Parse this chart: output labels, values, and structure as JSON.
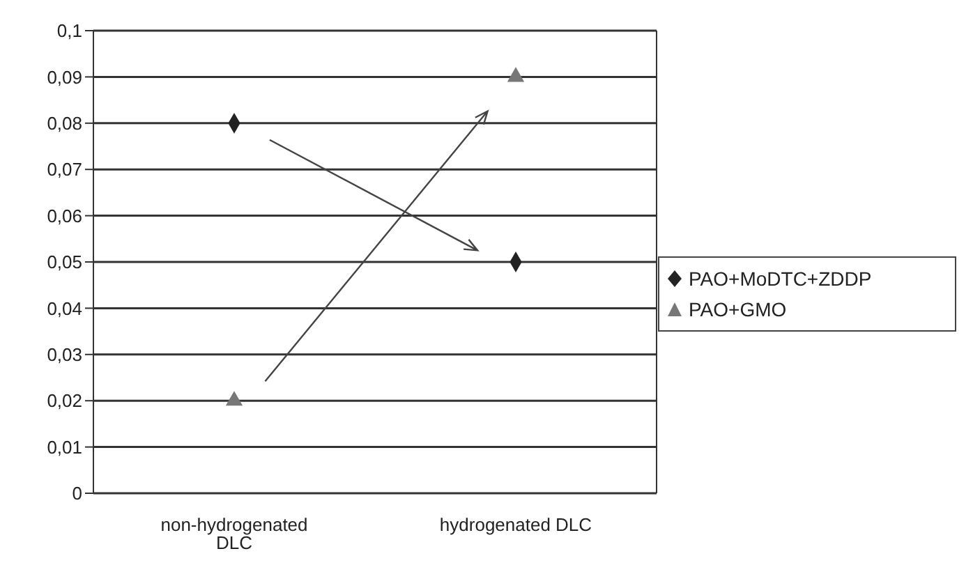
{
  "chart_data": {
    "type": "scatter",
    "categories": [
      "non-hydrogenated DLC",
      "hydrogenated DLC"
    ],
    "series": [
      {
        "name": "PAO+MoDTC+ZDDP",
        "color": "#222222",
        "marker": "diamond",
        "values": [
          0.08,
          0.05
        ]
      },
      {
        "name": "PAO+GMO",
        "color": "#777777",
        "marker": "triangle",
        "values": [
          0.02,
          0.09
        ]
      }
    ],
    "ylim": [
      0,
      0.1
    ],
    "yticks": [
      {
        "value": 0,
        "label": "0"
      },
      {
        "value": 0.01,
        "label": "0,01"
      },
      {
        "value": 0.02,
        "label": "0,02"
      },
      {
        "value": 0.03,
        "label": "0,03"
      },
      {
        "value": 0.04,
        "label": "0,04"
      },
      {
        "value": 0.05,
        "label": "0,05"
      },
      {
        "value": 0.06,
        "label": "0,06"
      },
      {
        "value": 0.07,
        "label": "0,07"
      },
      {
        "value": 0.08,
        "label": "0,08"
      },
      {
        "value": 0.09,
        "label": "0,09"
      },
      {
        "value": 0.1,
        "label": "0,1"
      }
    ],
    "grid": "y",
    "legend": "right"
  }
}
